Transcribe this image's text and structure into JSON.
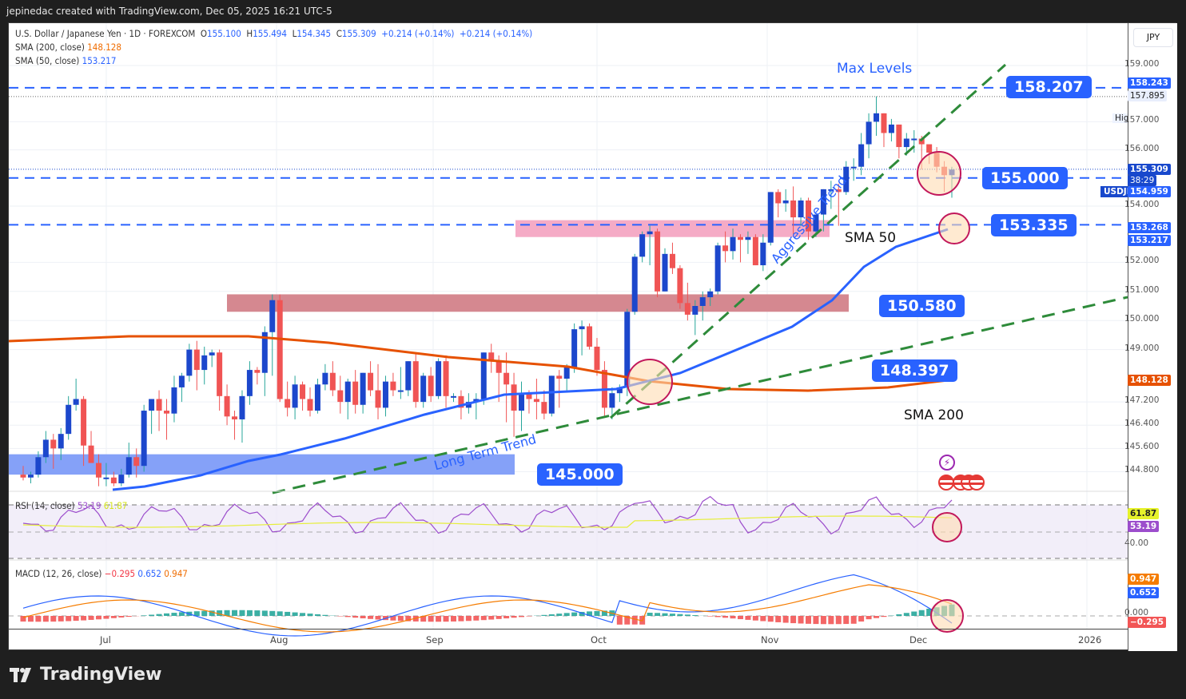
{
  "header": {
    "attribution": "jepinedac created with TradingView.com, Dec 05, 2025 16:21 UTC-5"
  },
  "legend": {
    "symbol": "U.S. Dollar / Japanese Yen · 1D · FOREXCOM",
    "open_label": "O",
    "open": "155.100",
    "high_label": "H",
    "high": "155.494",
    "low_label": "L",
    "low": "154.345",
    "close_label": "C",
    "close": "155.309",
    "change": "+0.214 (+0.14%)",
    "change2": "+0.214 (+0.14%)",
    "sma200_label": "SMA (200, close)",
    "sma200_value": "148.128",
    "sma50_label": "SMA (50, close)",
    "sma50_value": "153.217"
  },
  "rsi_legend": {
    "label": "RSI (14, close)",
    "value": "53.19",
    "signal": "61.87"
  },
  "macd_legend": {
    "label": "MACD (12, 26, close)",
    "hist": "−0.295",
    "macd": "0.652",
    "signal": "0.947"
  },
  "price_scale": {
    "currency": "JPY",
    "ticks": [
      "159.000",
      "157.000",
      "156.000",
      "154.000",
      "152.000",
      "151.000",
      "150.000",
      "149.000",
      "147.200",
      "146.400",
      "145.600",
      "144.800"
    ],
    "tags": {
      "max_level": "158.243",
      "high": "157.895",
      "high_label": "High",
      "last": "155.309",
      "countdown": "38:29",
      "level_155": "154.959",
      "level_153": "153.268",
      "sma50": "153.217",
      "sma200": "148.128",
      "symbol": "USDJPY"
    },
    "rsi_tags": {
      "signal": "61.87",
      "rsi": "53.19",
      "tick": "40.00"
    },
    "macd_tags": {
      "signal": "0.947",
      "macd": "0.652",
      "zero": "0.000",
      "hist": "−0.295"
    }
  },
  "time_axis": [
    "Jul",
    "Aug",
    "Sep",
    "Oct",
    "Nov",
    "Dec",
    "2026"
  ],
  "annotations": {
    "max_levels": "Max Levels",
    "box_158": "158.207",
    "box_155": "155.000",
    "box_153": "153.335",
    "box_150": "150.580",
    "box_148": "148.397",
    "box_145": "145.000",
    "sma50": "SMA 50",
    "sma200": "SMA 200",
    "aggressive_trend": "Aggressive Trend",
    "long_term_trend": "Long Term Trend"
  },
  "brand": {
    "name": "TradingView"
  },
  "colors": {
    "bull": "#1c47cc",
    "bear": "#f05454",
    "wick_bull": "#26a69a",
    "sma50": "#2962ff",
    "sma200": "#e65100",
    "trend": "#2e8b3a",
    "level": "#2962ff",
    "resistance_zone": "#d3828a",
    "pink_zone": "#f4a7c3",
    "support_zone": "#7e9cf8",
    "rsi": "#9c4dcc",
    "rsi_signal": "#e6ee3a"
  },
  "chart_data": {
    "type": "candlestick",
    "title": "U.S. Dollar / Japanese Yen · 1D · FOREXCOM",
    "xlabel": "",
    "ylabel": "JPY",
    "ylim": [
      144.5,
      159.5
    ],
    "x_ticks": [
      "Jul",
      "Aug",
      "Sep",
      "Oct",
      "Nov",
      "Dec",
      "2026"
    ],
    "last_ohlc": {
      "open": 155.1,
      "high": 155.494,
      "low": 154.345,
      "close": 155.309
    },
    "horizontal_levels": [
      158.207,
      155.0,
      153.335,
      150.58,
      148.397,
      145.0
    ],
    "zones": [
      {
        "name": "resistance",
        "from": 150.3,
        "to": 150.9
      },
      {
        "name": "pink",
        "from": 152.9,
        "to": 153.5
      },
      {
        "name": "support",
        "from": 144.6,
        "to": 145.4
      }
    ],
    "series": [
      {
        "name": "SMA 200",
        "last": 148.128
      },
      {
        "name": "SMA 50",
        "last": 153.217
      },
      {
        "name": "RSI 14",
        "last": 53.19,
        "signal": 61.87
      },
      {
        "name": "MACD",
        "macd": 0.652,
        "signal": 0.947,
        "hist": -0.295
      }
    ],
    "ohlc": [
      [
        144.7,
        145.0,
        144.5,
        144.6
      ],
      [
        144.6,
        144.8,
        144.4,
        144.7
      ],
      [
        144.7,
        145.5,
        144.6,
        145.3
      ],
      [
        145.3,
        146.2,
        145.1,
        145.9
      ],
      [
        145.9,
        146.1,
        144.9,
        145.6
      ],
      [
        145.6,
        146.3,
        145.2,
        146.1
      ],
      [
        146.1,
        147.4,
        145.9,
        147.1
      ],
      [
        147.1,
        148.0,
        146.9,
        147.3
      ],
      [
        147.3,
        147.4,
        145.0,
        145.7
      ],
      [
        145.7,
        146.2,
        145.2,
        145.1
      ],
      [
        145.1,
        145.4,
        144.3,
        144.6
      ],
      [
        144.6,
        145.1,
        144.3,
        144.6
      ],
      [
        144.6,
        144.8,
        144.3,
        144.4
      ],
      [
        144.4,
        144.9,
        144.3,
        144.7
      ],
      [
        144.7,
        145.8,
        144.6,
        145.3
      ],
      [
        145.3,
        145.6,
        144.6,
        145.0
      ],
      [
        145.0,
        147.1,
        144.8,
        146.9
      ],
      [
        146.9,
        147.3,
        146.1,
        147.3
      ],
      [
        147.3,
        147.6,
        146.2,
        146.9
      ],
      [
        146.9,
        147.3,
        145.9,
        146.8
      ],
      [
        146.8,
        148.1,
        146.5,
        147.7
      ],
      [
        147.7,
        148.2,
        147.2,
        148.1
      ],
      [
        148.1,
        149.2,
        147.9,
        149.0
      ],
      [
        149.0,
        149.3,
        147.6,
        148.3
      ],
      [
        148.3,
        149.1,
        147.8,
        148.8
      ],
      [
        148.8,
        149.0,
        148.4,
        148.9
      ],
      [
        148.9,
        149.0,
        146.9,
        147.4
      ],
      [
        147.4,
        147.8,
        146.4,
        146.7
      ],
      [
        146.7,
        146.9,
        145.9,
        146.6
      ],
      [
        146.6,
        147.6,
        145.8,
        147.4
      ],
      [
        147.4,
        148.6,
        147.1,
        148.3
      ],
      [
        148.3,
        148.4,
        147.8,
        148.2
      ],
      [
        148.2,
        149.8,
        147.4,
        149.6
      ],
      [
        149.6,
        150.9,
        148.1,
        150.7
      ],
      [
        150.7,
        150.9,
        147.2,
        147.3
      ],
      [
        147.3,
        147.9,
        146.7,
        147.0
      ],
      [
        147.0,
        148.1,
        146.6,
        147.8
      ],
      [
        147.8,
        147.9,
        146.9,
        147.3
      ],
      [
        147.3,
        147.7,
        146.7,
        146.9
      ],
      [
        146.9,
        148.0,
        146.8,
        147.8
      ],
      [
        147.8,
        148.5,
        147.6,
        148.2
      ],
      [
        148.2,
        148.6,
        147.4,
        147.6
      ],
      [
        147.6,
        148.1,
        146.8,
        147.2
      ],
      [
        147.2,
        148.0,
        146.6,
        147.9
      ],
      [
        147.9,
        148.3,
        146.8,
        147.1
      ],
      [
        147.1,
        148.2,
        146.8,
        148.2
      ],
      [
        148.2,
        148.6,
        147.4,
        147.6
      ],
      [
        147.6,
        148.5,
        146.6,
        147.0
      ],
      [
        147.0,
        148.1,
        146.7,
        147.9
      ],
      [
        147.9,
        148.2,
        147.4,
        147.6
      ],
      [
        147.6,
        148.4,
        147.3,
        147.6
      ],
      [
        147.6,
        148.6,
        147.4,
        148.6
      ],
      [
        148.6,
        148.9,
        147.0,
        147.2
      ],
      [
        147.2,
        148.2,
        147.0,
        148.1
      ],
      [
        148.1,
        148.4,
        147.2,
        147.4
      ],
      [
        147.4,
        148.7,
        147.3,
        148.6
      ],
      [
        148.6,
        148.8,
        147.0,
        147.4
      ],
      [
        147.4,
        147.5,
        147.2,
        147.4
      ],
      [
        147.4,
        147.6,
        146.6,
        147.0
      ],
      [
        147.0,
        147.5,
        146.8,
        147.2
      ],
      [
        147.2,
        147.5,
        146.6,
        147.3
      ],
      [
        147.3,
        148.9,
        147.1,
        148.9
      ],
      [
        148.9,
        149.2,
        148.2,
        148.6
      ],
      [
        148.6,
        148.8,
        147.2,
        148.2
      ],
      [
        148.2,
        148.9,
        146.5,
        147.8
      ],
      [
        147.8,
        148.2,
        146.0,
        146.9
      ],
      [
        146.9,
        147.9,
        146.2,
        147.5
      ],
      [
        147.5,
        147.6,
        146.8,
        147.3
      ],
      [
        147.3,
        148.0,
        146.6,
        147.2
      ],
      [
        147.2,
        147.6,
        146.6,
        146.8
      ],
      [
        146.8,
        148.1,
        146.7,
        148.1
      ],
      [
        148.1,
        148.3,
        147.0,
        148.0
      ],
      [
        148.0,
        148.5,
        147.6,
        148.4
      ],
      [
        148.4,
        149.9,
        148.2,
        149.7
      ],
      [
        149.7,
        150.0,
        148.8,
        149.8
      ],
      [
        149.8,
        149.9,
        149.0,
        149.1
      ],
      [
        149.1,
        149.4,
        148.1,
        148.3
      ],
      [
        148.3,
        148.6,
        146.7,
        147.0
      ],
      [
        147.0,
        147.7,
        146.6,
        147.5
      ],
      [
        147.5,
        147.8,
        147.2,
        147.7
      ],
      [
        147.7,
        150.4,
        147.4,
        150.3
      ],
      [
        150.3,
        152.3,
        150.2,
        152.2
      ],
      [
        152.2,
        153.1,
        152.0,
        153.0
      ],
      [
        153.0,
        153.3,
        151.9,
        153.1
      ],
      [
        153.1,
        153.2,
        150.8,
        151.0
      ],
      [
        151.0,
        152.5,
        151.0,
        152.3
      ],
      [
        152.3,
        152.7,
        151.6,
        151.8
      ],
      [
        151.8,
        151.9,
        150.4,
        150.6
      ],
      [
        150.6,
        151.3,
        150.0,
        150.2
      ],
      [
        150.2,
        150.7,
        149.5,
        150.5
      ],
      [
        150.5,
        151.0,
        150.0,
        150.8
      ],
      [
        150.8,
        151.1,
        150.5,
        151.0
      ],
      [
        151.0,
        152.7,
        150.9,
        152.6
      ],
      [
        152.6,
        153.1,
        152.0,
        152.4
      ],
      [
        152.4,
        153.2,
        152.1,
        152.9
      ],
      [
        152.9,
        153.0,
        152.0,
        152.8
      ],
      [
        152.8,
        153.1,
        152.3,
        152.9
      ],
      [
        152.9,
        153.0,
        151.9,
        151.9
      ],
      [
        151.9,
        153.0,
        151.7,
        152.7
      ],
      [
        152.7,
        154.5,
        152.6,
        154.5
      ],
      [
        154.5,
        154.6,
        153.6,
        154.1
      ],
      [
        154.1,
        154.6,
        153.8,
        154.2
      ],
      [
        154.2,
        154.7,
        153.0,
        153.6
      ],
      [
        153.6,
        154.3,
        153.3,
        154.2
      ],
      [
        154.2,
        154.3,
        152.8,
        153.1
      ],
      [
        153.1,
        153.4,
        152.9,
        153.7
      ],
      [
        153.7,
        154.6,
        153.1,
        154.6
      ],
      [
        154.6,
        154.9,
        153.9,
        154.6
      ],
      [
        154.6,
        154.8,
        153.3,
        154.5
      ],
      [
        154.5,
        155.6,
        154.4,
        155.4
      ],
      [
        155.4,
        155.7,
        154.9,
        155.4
      ],
      [
        155.4,
        156.6,
        155.1,
        156.2
      ],
      [
        156.2,
        157.3,
        155.7,
        157.0
      ],
      [
        157.0,
        157.9,
        156.5,
        157.3
      ],
      [
        157.3,
        157.3,
        156.1,
        156.6
      ],
      [
        156.6,
        157.1,
        156.3,
        156.9
      ],
      [
        156.9,
        156.9,
        155.7,
        156.1
      ],
      [
        156.1,
        156.6,
        155.8,
        156.4
      ],
      [
        156.4,
        156.7,
        155.9,
        156.4
      ],
      [
        156.4,
        156.5,
        155.3,
        156.2
      ],
      [
        156.2,
        156.0,
        155.5,
        155.9
      ],
      [
        155.9,
        156.1,
        155.2,
        155.4
      ],
      [
        155.4,
        155.6,
        154.5,
        155.1
      ],
      [
        155.1,
        155.4,
        154.3,
        155.3
      ]
    ]
  }
}
